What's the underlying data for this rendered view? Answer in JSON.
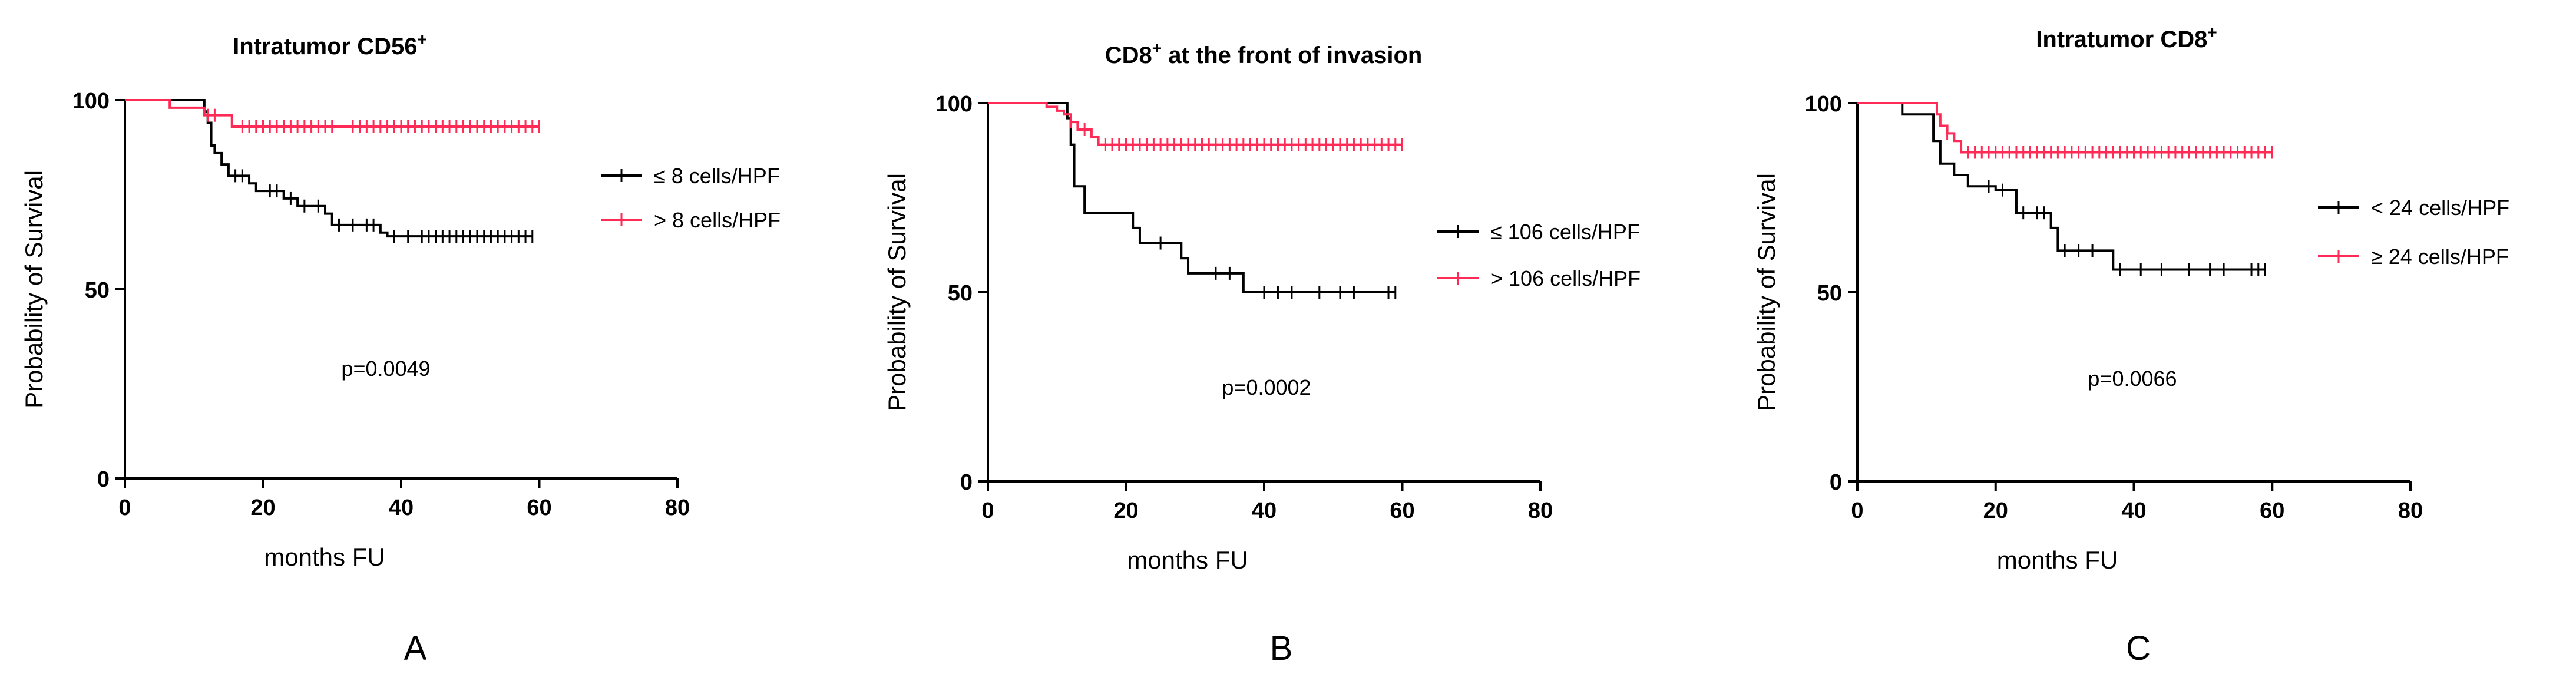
{
  "colors": {
    "black_series": "#000000",
    "red_series": "#ff2a55",
    "axis": "#000000"
  },
  "chart_data": [
    {
      "type": "line",
      "panel_label": "A",
      "title_main": "Intratumor CD56",
      "title_sup": "+",
      "title_rest": "",
      "xlabel": "months FU",
      "ylabel": "Probability of Survival",
      "xlim": [
        0,
        80
      ],
      "ylim": [
        0,
        100
      ],
      "xticks": [
        0,
        20,
        40,
        60,
        80
      ],
      "yticks": [
        0,
        50,
        100
      ],
      "pvalue": "p=0.0049",
      "legend_position": "right",
      "series": [
        {
          "name": "≤ 8 cells/HPF",
          "color": "#000000",
          "steps": [
            [
              0,
              100
            ],
            [
              11,
              100
            ],
            [
              11.5,
              97
            ],
            [
              12,
              94
            ],
            [
              12.5,
              88
            ],
            [
              13,
              86
            ],
            [
              14,
              83
            ],
            [
              15,
              80
            ],
            [
              18,
              78
            ],
            [
              19,
              76
            ],
            [
              23,
              74
            ],
            [
              25,
              72
            ],
            [
              29,
              70
            ],
            [
              30,
              67
            ],
            [
              37,
              65
            ],
            [
              38,
              64
            ],
            [
              59,
              64
            ]
          ],
          "censor": [
            16,
            17,
            21,
            22,
            24,
            26,
            28,
            31,
            33,
            35,
            36,
            39,
            41,
            43,
            44,
            45,
            46,
            47,
            48,
            49,
            50,
            51,
            52,
            53,
            54,
            55,
            56,
            57,
            58,
            59
          ]
        },
        {
          "name": "> 8 cells/HPF",
          "color": "#ff2a55",
          "steps": [
            [
              0,
              100
            ],
            [
              6,
              100
            ],
            [
              6.5,
              98
            ],
            [
              11,
              98
            ],
            [
              11.5,
              96
            ],
            [
              15,
              96
            ],
            [
              15.5,
              93
            ],
            [
              60,
              93
            ]
          ],
          "censor": [
            12,
            13,
            17,
            18,
            19,
            20,
            21,
            22,
            23,
            24,
            25,
            26,
            27,
            28,
            29,
            30,
            33,
            34,
            35,
            36,
            37,
            38,
            39,
            40,
            41,
            42,
            43,
            44,
            45,
            46,
            47,
            48,
            49,
            50,
            51,
            52,
            53,
            54,
            55,
            56,
            57,
            58,
            59,
            60
          ]
        }
      ]
    },
    {
      "type": "line",
      "panel_label": "B",
      "title_main": "CD8",
      "title_sup": "+",
      "title_rest": " at the front of invasion",
      "xlabel": "months FU",
      "ylabel": "Probability of Survival",
      "xlim": [
        0,
        80
      ],
      "ylim": [
        0,
        100
      ],
      "xticks": [
        0,
        20,
        40,
        60,
        80
      ],
      "yticks": [
        0,
        50,
        100
      ],
      "pvalue": "p=0.0002",
      "legend_position": "right",
      "series": [
        {
          "name": "≤ 106 cells/HPF",
          "color": "#000000",
          "steps": [
            [
              0,
              100
            ],
            [
              11,
              100
            ],
            [
              11.5,
              96
            ],
            [
              12,
              89
            ],
            [
              12.5,
              78
            ],
            [
              14,
              71
            ],
            [
              21,
              67
            ],
            [
              22,
              63
            ],
            [
              28,
              59
            ],
            [
              29,
              55
            ],
            [
              36,
              55
            ],
            [
              37,
              50
            ],
            [
              59,
              50
            ]
          ],
          "censor": [
            25,
            33,
            35,
            40,
            42,
            44,
            48,
            51,
            53,
            58,
            59
          ]
        },
        {
          "name": "> 106 cells/HPF",
          "color": "#ff2a55",
          "steps": [
            [
              0,
              100
            ],
            [
              8,
              100
            ],
            [
              8.5,
              99
            ],
            [
              10,
              98
            ],
            [
              11,
              97
            ],
            [
              12,
              95
            ],
            [
              13,
              93
            ],
            [
              15,
              91
            ],
            [
              16,
              89
            ],
            [
              60,
              89
            ]
          ],
          "censor": [
            12,
            14,
            17,
            18,
            19,
            20,
            21,
            22,
            23,
            24,
            25,
            26,
            27,
            28,
            29,
            30,
            31,
            32,
            33,
            34,
            35,
            36,
            37,
            38,
            39,
            40,
            41,
            42,
            43,
            44,
            45,
            46,
            47,
            48,
            49,
            50,
            51,
            52,
            53,
            54,
            55,
            56,
            57,
            58,
            59,
            60
          ]
        }
      ]
    },
    {
      "type": "line",
      "panel_label": "C",
      "title_main": "Intratumor CD8",
      "title_sup": "+",
      "title_rest": "",
      "xlabel": "months FU",
      "ylabel": "Probability of Survival",
      "xlim": [
        0,
        80
      ],
      "ylim": [
        0,
        100
      ],
      "xticks": [
        0,
        20,
        40,
        60,
        80
      ],
      "yticks": [
        0,
        50,
        100
      ],
      "pvalue": "p=0.0066",
      "legend_position": "right",
      "series": [
        {
          "name": "< 24 cells/HPF",
          "color": "#000000",
          "steps": [
            [
              0,
              100
            ],
            [
              6,
              100
            ],
            [
              6.5,
              97
            ],
            [
              10,
              97
            ],
            [
              11,
              90
            ],
            [
              12,
              84
            ],
            [
              14,
              81
            ],
            [
              16,
              78
            ],
            [
              20,
              77
            ],
            [
              23,
              71
            ],
            [
              28,
              67
            ],
            [
              29,
              61
            ],
            [
              36,
              61
            ],
            [
              37,
              56
            ],
            [
              59,
              56
            ]
          ],
          "censor": [
            19,
            21,
            24,
            26,
            27,
            30,
            32,
            34,
            38,
            41,
            44,
            48,
            51,
            53,
            57,
            58,
            59
          ]
        },
        {
          "name": "≥ 24 cells/HPF",
          "color": "#ff2a55",
          "steps": [
            [
              0,
              100
            ],
            [
              11,
              100
            ],
            [
              11.5,
              97
            ],
            [
              12,
              94
            ],
            [
              13,
              92
            ],
            [
              14,
              90
            ],
            [
              15,
              87
            ],
            [
              60,
              87
            ]
          ],
          "censor": [
            13,
            16,
            17,
            18,
            19,
            20,
            21,
            22,
            23,
            24,
            25,
            26,
            27,
            28,
            29,
            30,
            31,
            32,
            33,
            34,
            35,
            36,
            37,
            38,
            39,
            40,
            41,
            42,
            43,
            44,
            45,
            46,
            47,
            48,
            49,
            50,
            51,
            52,
            53,
            54,
            55,
            56,
            57,
            58,
            59,
            60
          ]
        }
      ]
    }
  ]
}
